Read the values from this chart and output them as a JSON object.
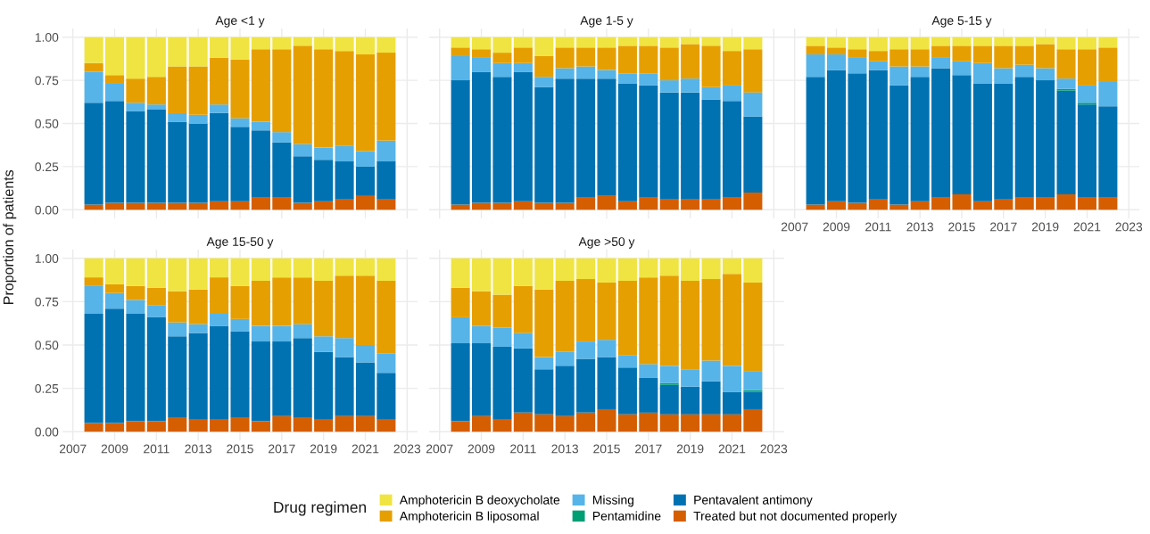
{
  "chart_data": [
    {
      "type": "bar",
      "stacked": true,
      "title": "Age <1 y",
      "ylabel": "Proportion of patients",
      "legend_title": "Drug regimen",
      "legend": "bottom",
      "grid": true,
      "tick_labels": "y",
      "x": [
        2008,
        2009,
        2010,
        2011,
        2012,
        2013,
        2014,
        2015,
        2016,
        2017,
        2018,
        2019,
        2020,
        2021,
        2022
      ],
      "xlim": [
        2006.5,
        2023.5
      ],
      "xticks": [
        2007,
        2009,
        2011,
        2013,
        2015,
        2017,
        2019,
        2021,
        2023
      ],
      "ylim": [
        -0.05,
        1.05
      ],
      "yticks": [
        {
          "value": 0,
          "label": "0.00"
        },
        {
          "value": 0.25,
          "label": "0.25"
        },
        {
          "value": 0.5,
          "label": "0.50"
        },
        {
          "value": 0.75,
          "label": "0.75"
        },
        {
          "value": 1,
          "label": "1.00"
        }
      ],
      "series": [
        {
          "name": "Treated but not documented properly",
          "color": "#d55e00",
          "values": [
            0.03,
            0.04,
            0.04,
            0.04,
            0.04,
            0.04,
            0.05,
            0.05,
            0.07,
            0.07,
            0.04,
            0.05,
            0.06,
            0.08,
            0.06
          ]
        },
        {
          "name": "Pentavalent antimony",
          "color": "#0072b2",
          "values": [
            0.59,
            0.59,
            0.53,
            0.54,
            0.47,
            0.46,
            0.51,
            0.43,
            0.39,
            0.32,
            0.27,
            0.24,
            0.22,
            0.17,
            0.22
          ]
        },
        {
          "name": "Pentamidine",
          "color": "#009e73",
          "values": [
            0,
            0,
            0,
            0,
            0,
            0,
            0,
            0,
            0,
            0,
            0,
            0,
            0,
            0,
            0
          ]
        },
        {
          "name": "Missing",
          "color": "#56b4e9",
          "values": [
            0.18,
            0.1,
            0.05,
            0.03,
            0.05,
            0.05,
            0.05,
            0.05,
            0.05,
            0.06,
            0.07,
            0.07,
            0.09,
            0.09,
            0.12
          ]
        },
        {
          "name": "Amphotericin B liposomal",
          "color": "#e69f00",
          "values": [
            0.05,
            0.05,
            0.14,
            0.16,
            0.27,
            0.28,
            0.27,
            0.34,
            0.42,
            0.48,
            0.57,
            0.57,
            0.55,
            0.56,
            0.51
          ]
        },
        {
          "name": "Amphotericin B deoxycholate",
          "color": "#f0e442",
          "values": [
            0.15,
            0.22,
            0.24,
            0.23,
            0.17,
            0.17,
            0.12,
            0.13,
            0.07,
            0.07,
            0.05,
            0.07,
            0.08,
            0.1,
            0.09
          ]
        }
      ]
    },
    {
      "type": "bar",
      "stacked": true,
      "title": "Age 1-5 y",
      "grid": true,
      "tick_labels": false,
      "x": [
        2008,
        2009,
        2010,
        2011,
        2012,
        2013,
        2014,
        2015,
        2016,
        2017,
        2018,
        2019,
        2020,
        2021,
        2022
      ],
      "xlim": [
        2006.5,
        2023.5
      ],
      "xticks": [
        2007,
        2009,
        2011,
        2013,
        2015,
        2017,
        2019,
        2021,
        2023
      ],
      "ylim": [
        -0.05,
        1.05
      ],
      "yticks": [
        0,
        0.25,
        0.5,
        0.75,
        1
      ],
      "series": [
        {
          "color": "#d55e00",
          "values": [
            0.03,
            0.04,
            0.04,
            0.05,
            0.04,
            0.04,
            0.07,
            0.08,
            0.05,
            0.07,
            0.06,
            0.06,
            0.06,
            0.07,
            0.1
          ]
        },
        {
          "color": "#0072b2",
          "values": [
            0.72,
            0.76,
            0.73,
            0.75,
            0.67,
            0.72,
            0.69,
            0.68,
            0.68,
            0.65,
            0.62,
            0.62,
            0.58,
            0.56,
            0.44
          ]
        },
        {
          "color": "#009e73",
          "values": [
            0,
            0,
            0,
            0,
            0,
            0,
            0,
            0,
            0,
            0,
            0,
            0,
            0,
            0,
            0
          ]
        },
        {
          "color": "#56b4e9",
          "values": [
            0.14,
            0.08,
            0.08,
            0.05,
            0.06,
            0.06,
            0.07,
            0.05,
            0.06,
            0.07,
            0.07,
            0.08,
            0.07,
            0.09,
            0.14
          ]
        },
        {
          "color": "#e69f00",
          "values": [
            0.05,
            0.05,
            0.06,
            0.09,
            0.12,
            0.12,
            0.11,
            0.13,
            0.16,
            0.16,
            0.19,
            0.2,
            0.24,
            0.2,
            0.25
          ]
        },
        {
          "color": "#f0e442",
          "values": [
            0.06,
            0.07,
            0.09,
            0.06,
            0.11,
            0.06,
            0.06,
            0.06,
            0.05,
            0.05,
            0.06,
            0.04,
            0.05,
            0.08,
            0.07
          ]
        }
      ]
    },
    {
      "type": "bar",
      "stacked": true,
      "title": "Age 5-15 y",
      "grid": true,
      "tick_labels": "x",
      "x": [
        2008,
        2009,
        2010,
        2011,
        2012,
        2013,
        2014,
        2015,
        2016,
        2017,
        2018,
        2019,
        2020,
        2021,
        2022
      ],
      "xlim": [
        2006.5,
        2023.5
      ],
      "xticks": [
        2007,
        2009,
        2011,
        2013,
        2015,
        2017,
        2019,
        2021,
        2023
      ],
      "ylim": [
        -0.05,
        1.05
      ],
      "yticks": [
        0,
        0.25,
        0.5,
        0.75,
        1
      ],
      "series": [
        {
          "color": "#d55e00",
          "values": [
            0.03,
            0.05,
            0.04,
            0.06,
            0.03,
            0.05,
            0.07,
            0.09,
            0.05,
            0.06,
            0.07,
            0.07,
            0.09,
            0.07,
            0.07
          ]
        },
        {
          "color": "#0072b2",
          "values": [
            0.74,
            0.76,
            0.75,
            0.75,
            0.69,
            0.72,
            0.75,
            0.69,
            0.68,
            0.67,
            0.7,
            0.68,
            0.6,
            0.54,
            0.53
          ]
        },
        {
          "color": "#009e73",
          "values": [
            0,
            0,
            0,
            0,
            0,
            0,
            0,
            0,
            0,
            0,
            0,
            0,
            0.01,
            0.01,
            0
          ]
        },
        {
          "color": "#56b4e9",
          "values": [
            0.13,
            0.09,
            0.09,
            0.05,
            0.11,
            0.06,
            0.06,
            0.08,
            0.12,
            0.09,
            0.07,
            0.07,
            0.06,
            0.1,
            0.14
          ]
        },
        {
          "color": "#e69f00",
          "values": [
            0.05,
            0.04,
            0.05,
            0.06,
            0.1,
            0.1,
            0.07,
            0.09,
            0.1,
            0.13,
            0.11,
            0.14,
            0.17,
            0.21,
            0.2
          ]
        },
        {
          "color": "#f0e442",
          "values": [
            0.05,
            0.06,
            0.07,
            0.08,
            0.07,
            0.07,
            0.05,
            0.05,
            0.05,
            0.05,
            0.05,
            0.04,
            0.07,
            0.07,
            0.06
          ]
        }
      ]
    },
    {
      "type": "bar",
      "stacked": true,
      "title": "Age 15-50 y",
      "grid": true,
      "x": [
        2008,
        2009,
        2010,
        2011,
        2012,
        2013,
        2014,
        2015,
        2016,
        2017,
        2018,
        2019,
        2020,
        2021,
        2022
      ],
      "xlim": [
        2006.5,
        2023.5
      ],
      "xticks": [
        2007,
        2009,
        2011,
        2013,
        2015,
        2017,
        2019,
        2021,
        2023
      ],
      "ylim": [
        -0.05,
        1.05
      ],
      "yticks": [
        {
          "value": 0,
          "label": "0.00"
        },
        {
          "value": 0.25,
          "label": "0.25"
        },
        {
          "value": 0.5,
          "label": "0.50"
        },
        {
          "value": 0.75,
          "label": "0.75"
        },
        {
          "value": 1,
          "label": "1.00"
        }
      ],
      "series": [
        {
          "color": "#d55e00",
          "values": [
            0.05,
            0.05,
            0.06,
            0.06,
            0.08,
            0.07,
            0.07,
            0.08,
            0.06,
            0.09,
            0.08,
            0.07,
            0.09,
            0.09,
            0.07
          ]
        },
        {
          "color": "#0072b2",
          "values": [
            0.63,
            0.66,
            0.62,
            0.6,
            0.47,
            0.5,
            0.54,
            0.5,
            0.46,
            0.43,
            0.46,
            0.39,
            0.34,
            0.31,
            0.27
          ]
        },
        {
          "color": "#009e73",
          "values": [
            0,
            0,
            0,
            0,
            0,
            0,
            0,
            0,
            0,
            0,
            0,
            0,
            0,
            0,
            0
          ]
        },
        {
          "color": "#56b4e9",
          "values": [
            0.16,
            0.09,
            0.08,
            0.07,
            0.08,
            0.05,
            0.07,
            0.07,
            0.09,
            0.09,
            0.08,
            0.09,
            0.11,
            0.1,
            0.11
          ]
        },
        {
          "color": "#e69f00",
          "values": [
            0.05,
            0.05,
            0.08,
            0.1,
            0.18,
            0.2,
            0.21,
            0.19,
            0.26,
            0.28,
            0.27,
            0.32,
            0.36,
            0.4,
            0.42
          ]
        },
        {
          "color": "#f0e442",
          "values": [
            0.11,
            0.15,
            0.16,
            0.17,
            0.19,
            0.18,
            0.11,
            0.16,
            0.13,
            0.11,
            0.11,
            0.13,
            0.1,
            0.1,
            0.13
          ]
        }
      ]
    },
    {
      "type": "bar",
      "stacked": true,
      "title": "Age >50 y",
      "grid": true,
      "tick_labels": "x",
      "x": [
        2008,
        2009,
        2010,
        2011,
        2012,
        2013,
        2014,
        2015,
        2016,
        2017,
        2018,
        2019,
        2020,
        2021,
        2022
      ],
      "xlim": [
        2006.5,
        2023.5
      ],
      "xticks": [
        2007,
        2009,
        2011,
        2013,
        2015,
        2017,
        2019,
        2021,
        2023
      ],
      "ylim": [
        -0.05,
        1.05
      ],
      "yticks": [
        0,
        0.25,
        0.5,
        0.75,
        1
      ],
      "series": [
        {
          "color": "#d55e00",
          "values": [
            0.06,
            0.09,
            0.07,
            0.11,
            0.1,
            0.09,
            0.11,
            0.13,
            0.1,
            0.11,
            0.1,
            0.1,
            0.1,
            0.1,
            0.13
          ]
        },
        {
          "color": "#0072b2",
          "values": [
            0.45,
            0.42,
            0.42,
            0.37,
            0.26,
            0.29,
            0.31,
            0.3,
            0.27,
            0.2,
            0.17,
            0.16,
            0.19,
            0.13,
            0.1
          ]
        },
        {
          "color": "#009e73",
          "values": [
            0,
            0,
            0,
            0,
            0,
            0,
            0,
            0,
            0,
            0,
            0.01,
            0,
            0,
            0,
            0.01
          ]
        },
        {
          "color": "#56b4e9",
          "values": [
            0.15,
            0.1,
            0.11,
            0.09,
            0.07,
            0.08,
            0.1,
            0.1,
            0.07,
            0.08,
            0.1,
            0.1,
            0.12,
            0.15,
            0.11
          ]
        },
        {
          "color": "#e69f00",
          "values": [
            0.17,
            0.2,
            0.19,
            0.27,
            0.39,
            0.41,
            0.36,
            0.33,
            0.43,
            0.5,
            0.52,
            0.51,
            0.47,
            0.53,
            0.51
          ]
        },
        {
          "color": "#f0e442",
          "values": [
            0.17,
            0.19,
            0.21,
            0.16,
            0.18,
            0.13,
            0.12,
            0.14,
            0.13,
            0.11,
            0.1,
            0.13,
            0.12,
            0.09,
            0.14
          ]
        }
      ]
    }
  ]
}
